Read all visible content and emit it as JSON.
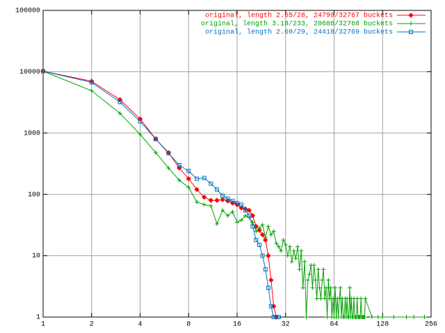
{
  "chart_data": {
    "type": "line",
    "log_x": true,
    "log_y": true,
    "grid": true,
    "legend": "top-right",
    "xlim": [
      1,
      256
    ],
    "ylim": [
      1,
      100000
    ],
    "xticks": [
      1,
      2,
      4,
      8,
      16,
      32,
      64,
      128,
      256
    ],
    "yticks": [
      1,
      10,
      100,
      1000,
      10000,
      100000
    ],
    "series": [
      {
        "name": "original, length 2.65/28, 24799/32767 buckets",
        "color": "#ff0000",
        "marker": "diamond",
        "x": [
          1,
          2,
          3,
          4,
          5,
          6,
          7,
          8,
          9,
          10,
          11,
          12,
          13,
          14,
          15,
          16,
          17,
          18,
          19,
          20,
          21,
          22,
          23,
          24,
          25,
          26,
          27,
          28
        ],
        "values": [
          10200,
          7000,
          3500,
          1700,
          800,
          480,
          270,
          180,
          120,
          90,
          80,
          80,
          82,
          78,
          72,
          68,
          60,
          58,
          55,
          45,
          30,
          26,
          22,
          18,
          10,
          4,
          1.5,
          1
        ]
      },
      {
        "name": "original, length 3.18/233, 20686/32768 buckets",
        "color": "#00a000",
        "marker": "plus",
        "x": [
          1,
          2,
          3,
          4,
          5,
          6,
          7,
          8,
          9,
          10,
          11,
          12,
          13,
          14,
          15,
          16,
          17,
          18,
          19,
          20,
          21,
          22,
          23,
          24,
          25,
          26,
          27,
          28,
          29,
          30,
          31,
          32,
          33,
          34,
          35,
          36,
          37,
          38,
          39,
          40,
          41,
          42,
          43,
          44,
          45,
          46,
          47,
          48,
          49,
          50,
          51,
          52,
          53,
          54,
          55,
          56,
          57,
          58,
          59,
          60,
          61,
          62,
          63,
          64,
          65,
          66,
          67,
          68,
          69,
          70,
          71,
          72,
          73,
          74,
          75,
          76,
          77,
          78,
          79,
          80,
          81,
          82,
          83,
          84,
          85,
          86,
          87,
          88,
          89,
          90,
          91,
          92,
          93,
          94,
          95,
          96,
          97,
          98,
          99,
          100,
          110,
          120,
          128,
          150,
          180,
          200,
          233
        ],
        "values": [
          10200,
          4900,
          2100,
          950,
          480,
          270,
          170,
          130,
          75,
          68,
          65,
          33,
          55,
          45,
          52,
          35,
          38,
          45,
          42,
          35,
          25,
          28,
          32,
          20,
          30,
          22,
          25,
          16,
          14,
          12,
          18,
          15,
          10,
          14,
          8,
          12,
          9,
          14,
          6,
          12,
          3,
          8,
          1,
          4,
          5,
          7,
          3,
          7,
          4,
          2,
          6,
          3,
          2,
          4,
          6,
          2,
          3,
          1,
          4,
          2,
          3,
          1,
          2,
          1,
          3,
          1,
          2,
          1,
          2,
          3,
          1,
          2,
          1,
          1,
          2,
          1,
          2,
          1,
          1,
          3,
          1,
          2,
          1,
          1,
          2,
          1,
          1,
          1,
          2,
          1,
          1,
          1,
          1,
          2,
          1,
          1,
          1,
          1,
          1,
          2,
          1,
          1,
          1,
          1,
          1,
          1,
          1
        ]
      },
      {
        "name": "original, length 2.69/29, 24418/32769 buckets",
        "color": "#0070c0",
        "marker": "square",
        "x": [
          1,
          2,
          3,
          4,
          5,
          6,
          7,
          8,
          9,
          10,
          11,
          12,
          13,
          14,
          15,
          16,
          17,
          18,
          19,
          20,
          21,
          22,
          23,
          24,
          25,
          26,
          27,
          28,
          29
        ],
        "values": [
          10200,
          6700,
          3200,
          1550,
          800,
          470,
          300,
          240,
          180,
          185,
          150,
          120,
          95,
          85,
          78,
          72,
          68,
          55,
          45,
          30,
          18,
          15,
          10,
          6,
          3,
          1.5,
          1,
          1,
          1
        ]
      }
    ]
  }
}
